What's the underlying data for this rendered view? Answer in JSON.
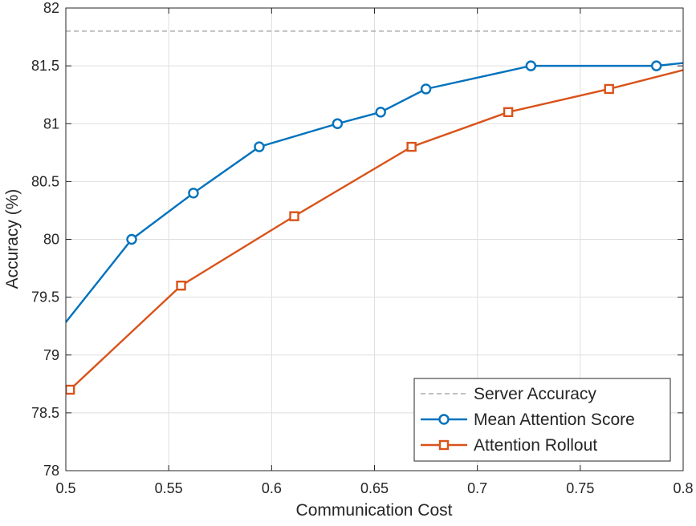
{
  "chart_data": {
    "type": "line",
    "title": "",
    "xlabel": "Communication Cost",
    "ylabel": "Accuracy (%)",
    "xlim": [
      0.5,
      0.8
    ],
    "ylim": [
      78,
      82
    ],
    "xticks": [
      "0.5",
      "0.55",
      "0.6",
      "0.65",
      "0.7",
      "0.75",
      "0.8"
    ],
    "yticks": [
      "78",
      "78.5",
      "79",
      "79.5",
      "80",
      "80.5",
      "81",
      "81.5",
      "82"
    ],
    "grid": true,
    "legend_position": "bottom-right",
    "series": [
      {
        "name": "Server Accuracy",
        "style": "dashed",
        "marker": "none",
        "color": "#808080",
        "x": [
          0.5,
          0.8
        ],
        "y": [
          81.8,
          81.8
        ]
      },
      {
        "name": "Mean Attention Score",
        "style": "solid",
        "marker": "circle",
        "color": "#0072BD",
        "x": [
          0.465,
          0.532,
          0.562,
          0.594,
          0.632,
          0.653,
          0.675,
          0.726,
          0.787,
          0.84
        ],
        "y": [
          78.5,
          80.0,
          80.4,
          80.8,
          81.0,
          81.1,
          81.3,
          81.5,
          81.5,
          81.6
        ]
      },
      {
        "name": "Attention Rollout",
        "style": "solid",
        "marker": "square",
        "color": "#D95319",
        "x": [
          0.502,
          0.556,
          0.611,
          0.668,
          0.715,
          0.764,
          0.83
        ],
        "y": [
          78.7,
          79.6,
          80.2,
          80.8,
          81.1,
          81.3,
          81.6
        ]
      }
    ]
  }
}
